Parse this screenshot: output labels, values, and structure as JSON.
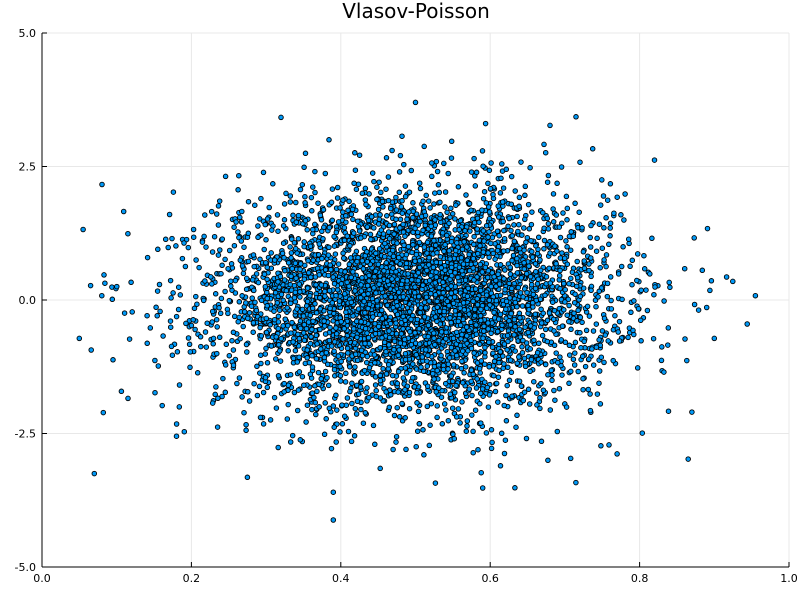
{
  "chart_data": {
    "type": "scatter",
    "title": "Vlasov-Poisson",
    "xlabel": "",
    "ylabel": "",
    "xlim": [
      0.0,
      1.0
    ],
    "ylim": [
      -5.0,
      5.0
    ],
    "xticks": [
      0.0,
      0.2,
      0.4,
      0.6,
      0.8,
      1.0
    ],
    "xtick_labels": [
      "0.0",
      "0.2",
      "0.4",
      "0.6",
      "0.8",
      "1.0"
    ],
    "yticks": [
      -5.0,
      -2.5,
      0.0,
      2.5,
      5.0
    ],
    "ytick_labels": [
      "-5.0",
      "-2.5",
      "0.0",
      "2.5",
      "5.0"
    ],
    "grid": true,
    "legend": "none",
    "marker_color": "#009af9",
    "marker_edge_color": "#000000",
    "series": [
      {
        "description": "particle cloud, approx. Gaussian in x (mean 0.5) and v (mean 0)",
        "x_mean": 0.5,
        "x_std": 0.13,
        "y_mean": 0.0,
        "y_std": 1.0,
        "n_points": 5000,
        "outliers": [
          [
            0.5,
            3.7
          ],
          [
            0.39,
            -4.12
          ],
          [
            0.955,
            0.08
          ],
          [
            0.944,
            -0.45
          ],
          [
            0.9,
            -0.72
          ],
          [
            0.07,
            -3.25
          ],
          [
            0.055,
            1.32
          ],
          [
            0.05,
            -0.72
          ],
          [
            0.87,
            -2.1
          ],
          [
            0.865,
            -2.98
          ],
          [
            0.32,
            3.42
          ],
          [
            0.68,
            3.27
          ],
          [
            0.59,
            -3.52
          ],
          [
            0.39,
            -3.6
          ],
          [
            0.275,
            -3.32
          ],
          [
            0.82,
            2.62
          ],
          [
            0.18,
            -2.55
          ],
          [
            0.065,
            0.27
          ],
          [
            0.08,
            0.08
          ],
          [
            0.095,
            -1.12
          ]
        ]
      }
    ]
  }
}
